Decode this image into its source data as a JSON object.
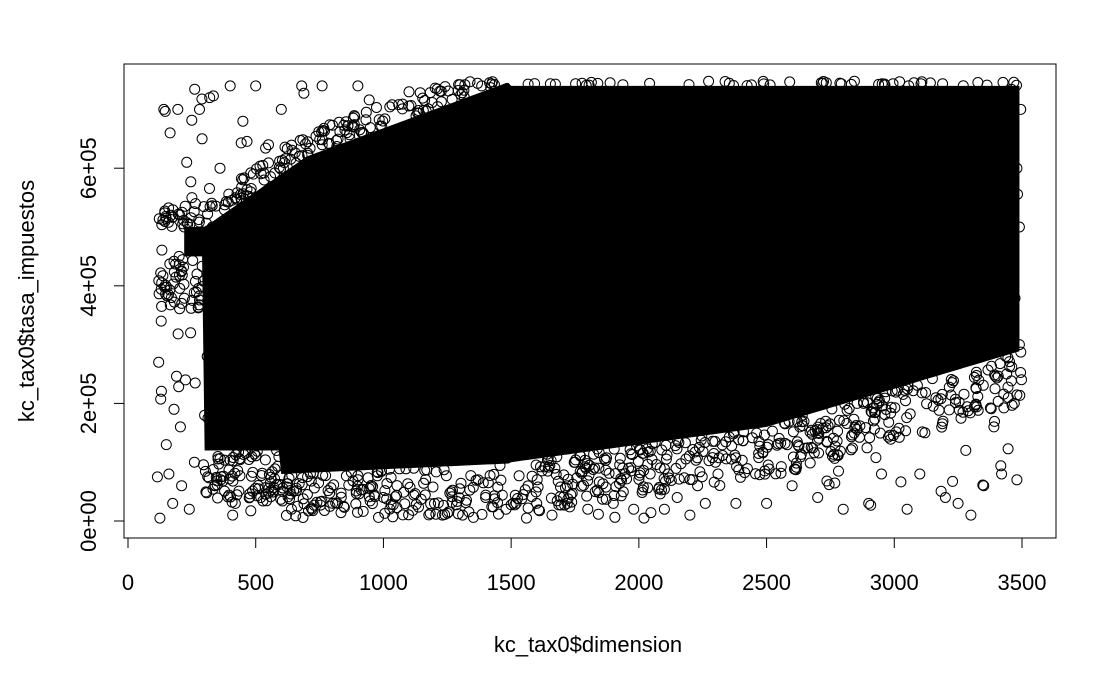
{
  "chart_data": {
    "type": "scatter",
    "title": "",
    "xlabel": "kc_tax0$dimension",
    "ylabel": "kc_tax0$tasa_impuestos",
    "xlim": [
      0,
      3500
    ],
    "ylim": [
      0,
      750000
    ],
    "x_ticks": [
      {
        "value": 0,
        "label": "0"
      },
      {
        "value": 500,
        "label": "500"
      },
      {
        "value": 1000,
        "label": "1000"
      },
      {
        "value": 1500,
        "label": "1500"
      },
      {
        "value": 2000,
        "label": "2000"
      },
      {
        "value": 2500,
        "label": "2500"
      },
      {
        "value": 3000,
        "label": "3000"
      },
      {
        "value": 3500,
        "label": "3500"
      }
    ],
    "y_ticks": [
      {
        "value": 0,
        "label": "0e+00"
      },
      {
        "value": 200000,
        "label": "2e+05"
      },
      {
        "value": 400000,
        "label": "4e+05"
      },
      {
        "value": 600000,
        "label": "6e+05"
      }
    ],
    "marker": "open-circle",
    "point_color": "#000000",
    "points": [
      [
        115,
        75000
      ],
      [
        120,
        270000
      ],
      [
        125,
        5000
      ],
      [
        130,
        340000
      ],
      [
        140,
        700000
      ],
      [
        150,
        130000
      ],
      [
        160,
        80000
      ],
      [
        165,
        660000
      ],
      [
        170,
        380000
      ],
      [
        175,
        30000
      ],
      [
        180,
        190000
      ],
      [
        195,
        700000
      ],
      [
        200,
        450000
      ],
      [
        205,
        160000
      ],
      [
        210,
        60000
      ],
      [
        220,
        500000
      ],
      [
        225,
        240000
      ],
      [
        230,
        610000
      ],
      [
        240,
        20000
      ],
      [
        245,
        320000
      ],
      [
        250,
        550000
      ],
      [
        260,
        100000
      ],
      [
        270,
        420000
      ],
      [
        280,
        700000
      ],
      [
        290,
        650000
      ],
      [
        300,
        180000
      ],
      [
        310,
        280000
      ],
      [
        320,
        720000
      ],
      [
        330,
        500000
      ],
      [
        340,
        60000
      ],
      [
        350,
        420000
      ],
      [
        360,
        600000
      ],
      [
        380,
        230000
      ],
      [
        400,
        740000
      ],
      [
        410,
        10000
      ],
      [
        420,
        30000
      ],
      [
        450,
        680000
      ],
      [
        480,
        560000
      ],
      [
        500,
        740000
      ],
      [
        520,
        40000
      ],
      [
        550,
        640000
      ],
      [
        600,
        700000
      ],
      [
        640,
        20000
      ],
      [
        680,
        740000
      ],
      [
        720,
        20000
      ],
      [
        760,
        740000
      ],
      [
        820,
        30000
      ],
      [
        900,
        740000
      ],
      [
        1000,
        40000
      ],
      [
        1100,
        730000
      ],
      [
        1200,
        30000
      ],
      [
        1310,
        10000
      ],
      [
        1400,
        40000
      ],
      [
        1480,
        20000
      ],
      [
        1560,
        5000
      ],
      [
        1600,
        30000
      ],
      [
        1660,
        10000
      ],
      [
        1720,
        30000
      ],
      [
        1800,
        20000
      ],
      [
        1900,
        30000
      ],
      [
        1980,
        20000
      ],
      [
        2020,
        5000
      ],
      [
        2100,
        20000
      ],
      [
        2150,
        40000
      ],
      [
        2200,
        10000
      ],
      [
        2260,
        30000
      ],
      [
        2380,
        30000
      ],
      [
        2500,
        30000
      ],
      [
        2600,
        60000
      ],
      [
        2700,
        40000
      ],
      [
        2800,
        20000
      ],
      [
        2900,
        30000
      ],
      [
        2950,
        80000
      ],
      [
        3050,
        20000
      ],
      [
        3100,
        80000
      ],
      [
        3200,
        40000
      ],
      [
        3250,
        30000
      ],
      [
        3300,
        10000
      ],
      [
        3350,
        60000
      ],
      [
        3420,
        80000
      ],
      [
        3480,
        70000
      ],
      [
        3390,
        160000
      ],
      [
        3440,
        250000
      ],
      [
        3280,
        120000
      ],
      [
        3120,
        150000
      ],
      [
        2880,
        200000
      ],
      [
        2640,
        180000
      ],
      [
        2300,
        100000
      ],
      [
        1960,
        90000
      ],
      [
        1720,
        60000
      ],
      [
        3470,
        200000
      ],
      [
        3490,
        300000
      ],
      [
        3460,
        350000
      ],
      [
        3490,
        500000
      ],
      [
        3480,
        600000
      ],
      [
        3495,
        700000
      ]
    ]
  }
}
